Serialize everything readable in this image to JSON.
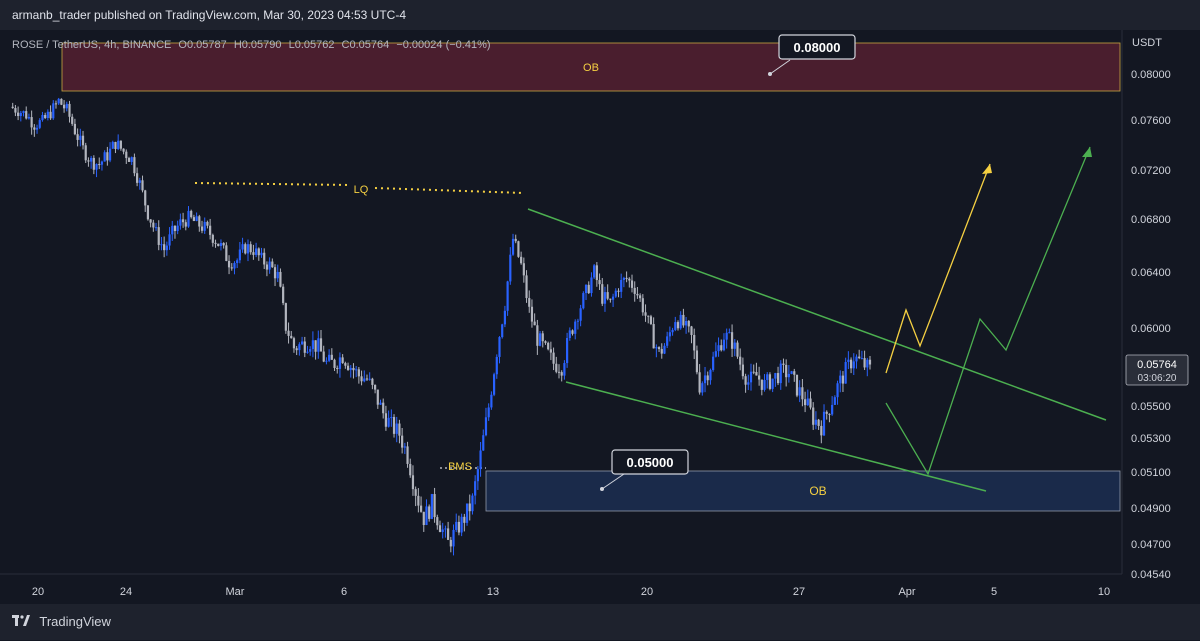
{
  "header": {
    "publisher": "armanb_trader published on TradingView.com, Mar 30, 2023 04:53 UTC-4"
  },
  "legend": {
    "symbol": "ROSE / TetherUS, 4h, BINANCE",
    "open": "O0.05787",
    "high": "H0.05790",
    "low": "L0.05762",
    "close": "C0.05764",
    "change": "−0.00024 (−0.41%)"
  },
  "axis": {
    "currency": "USDT",
    "price_ticks": [
      "0.08000",
      "0.07600",
      "0.07200",
      "0.06800",
      "0.06400",
      "0.06000",
      "0.05500",
      "0.05300",
      "0.05100",
      "0.04900",
      "0.04700",
      "0.04540"
    ],
    "time_ticks": [
      "20",
      "24",
      "Mar",
      "6",
      "13",
      "20",
      "27",
      "Apr",
      "5",
      "10"
    ]
  },
  "price_label": {
    "value": "0.05764",
    "countdown": "03:06:20"
  },
  "annotations": {
    "ob_top": "OB",
    "ob_bottom": "OB",
    "lq": "LQ",
    "bms": "BMS",
    "callout_top": "0.08000",
    "callout_bottom": "0.05000"
  },
  "footer": {
    "brand": "TradingView"
  },
  "colors": {
    "background": "#131722",
    "bull_candle": "#2962ff",
    "bear_candle": "#b2b5be",
    "ob_top_fill": "#4a1e2e",
    "ob_bottom_fill": "#1a2a4a",
    "wedge_line": "#4caf50",
    "projection_yellow": "#f5d042",
    "projection_green": "#4caf50"
  },
  "chart_data": {
    "type": "candlestick",
    "symbol": "ROSE/USDT",
    "interval": "4h",
    "ylim": [
      0.0454,
      0.0825
    ],
    "close_path": [
      [
        0,
        0.0775
      ],
      [
        3,
        0.0772
      ],
      [
        6,
        0.0768
      ],
      [
        9,
        0.076
      ],
      [
        12,
        0.0762
      ],
      [
        15,
        0.077
      ],
      [
        18,
        0.078
      ],
      [
        21,
        0.0772
      ],
      [
        24,
        0.0755
      ],
      [
        27,
        0.074
      ],
      [
        30,
        0.073
      ],
      [
        33,
        0.0728
      ],
      [
        36,
        0.0735
      ],
      [
        39,
        0.0745
      ],
      [
        42,
        0.0738
      ],
      [
        45,
        0.0732
      ],
      [
        48,
        0.0712
      ],
      [
        51,
        0.0688
      ],
      [
        54,
        0.0672
      ],
      [
        57,
        0.066
      ],
      [
        60,
        0.0672
      ],
      [
        63,
        0.068
      ],
      [
        66,
        0.0684
      ],
      [
        69,
        0.068
      ],
      [
        72,
        0.0676
      ],
      [
        75,
        0.067
      ],
      [
        78,
        0.0662
      ],
      [
        81,
        0.0651
      ],
      [
        84,
        0.0652
      ],
      [
        87,
        0.0662
      ],
      [
        90,
        0.066
      ],
      [
        93,
        0.0652
      ],
      [
        96,
        0.0648
      ],
      [
        99,
        0.064
      ],
      [
        102,
        0.0604
      ],
      [
        105,
        0.059
      ],
      [
        108,
        0.0592
      ],
      [
        111,
        0.0594
      ],
      [
        114,
        0.059
      ],
      [
        117,
        0.058
      ],
      [
        120,
        0.058
      ],
      [
        123,
        0.0585
      ],
      [
        126,
        0.0578
      ],
      [
        129,
        0.0572
      ],
      [
        132,
        0.057
      ],
      [
        135,
        0.056
      ],
      [
        138,
        0.0548
      ],
      [
        141,
        0.054
      ],
      [
        144,
        0.0535
      ],
      [
        147,
        0.0522
      ],
      [
        150,
        0.0502
      ],
      [
        153,
        0.0486
      ],
      [
        156,
        0.0494
      ],
      [
        159,
        0.0482
      ],
      [
        162,
        0.047
      ],
      [
        165,
        0.0478
      ],
      [
        168,
        0.0486
      ],
      [
        171,
        0.0496
      ],
      [
        174,
        0.0522
      ],
      [
        177,
        0.0552
      ],
      [
        180,
        0.0588
      ],
      [
        183,
        0.062
      ],
      [
        186,
        0.0668
      ],
      [
        189,
        0.0648
      ],
      [
        192,
        0.0615
      ],
      [
        195,
        0.0596
      ],
      [
        198,
        0.0588
      ],
      [
        201,
        0.058
      ],
      [
        204,
        0.0578
      ],
      [
        207,
        0.0598
      ],
      [
        210,
        0.0614
      ],
      [
        213,
        0.0628
      ],
      [
        216,
        0.0643
      ],
      [
        219,
        0.0625
      ],
      [
        222,
        0.062
      ],
      [
        225,
        0.0633
      ],
      [
        228,
        0.0638
      ],
      [
        231,
        0.0632
      ],
      [
        234,
        0.0618
      ],
      [
        237,
        0.06
      ],
      [
        240,
        0.0586
      ],
      [
        243,
        0.0594
      ],
      [
        246,
        0.061
      ],
      [
        249,
        0.0605
      ],
      [
        252,
        0.0596
      ],
      [
        255,
        0.0566
      ],
      [
        258,
        0.0575
      ],
      [
        261,
        0.0586
      ],
      [
        264,
        0.0598
      ],
      [
        267,
        0.0594
      ],
      [
        270,
        0.058
      ],
      [
        273,
        0.0568
      ],
      [
        276,
        0.0572
      ],
      [
        279,
        0.0566
      ],
      [
        282,
        0.057
      ],
      [
        285,
        0.0574
      ],
      [
        288,
        0.0574
      ],
      [
        291,
        0.0564
      ],
      [
        294,
        0.0556
      ],
      [
        297,
        0.0545
      ],
      [
        300,
        0.054
      ],
      [
        303,
        0.0552
      ],
      [
        306,
        0.0565
      ],
      [
        309,
        0.0575
      ],
      [
        312,
        0.0584
      ],
      [
        315,
        0.058
      ],
      [
        318,
        0.0576
      ]
    ],
    "zones": [
      {
        "label": "OB",
        "low": 0.07855,
        "high": 0.0825,
        "from": 9,
        "to": 10.9
      },
      {
        "label": "OB",
        "low": 0.0487,
        "high": 0.051,
        "from": 12.6,
        "to": 10.9
      }
    ],
    "levels": [
      {
        "label": "LQ",
        "price": 0.0708
      },
      {
        "label": "BMS",
        "price": 0.0509
      }
    ],
    "callouts": [
      0.08,
      0.05
    ]
  }
}
